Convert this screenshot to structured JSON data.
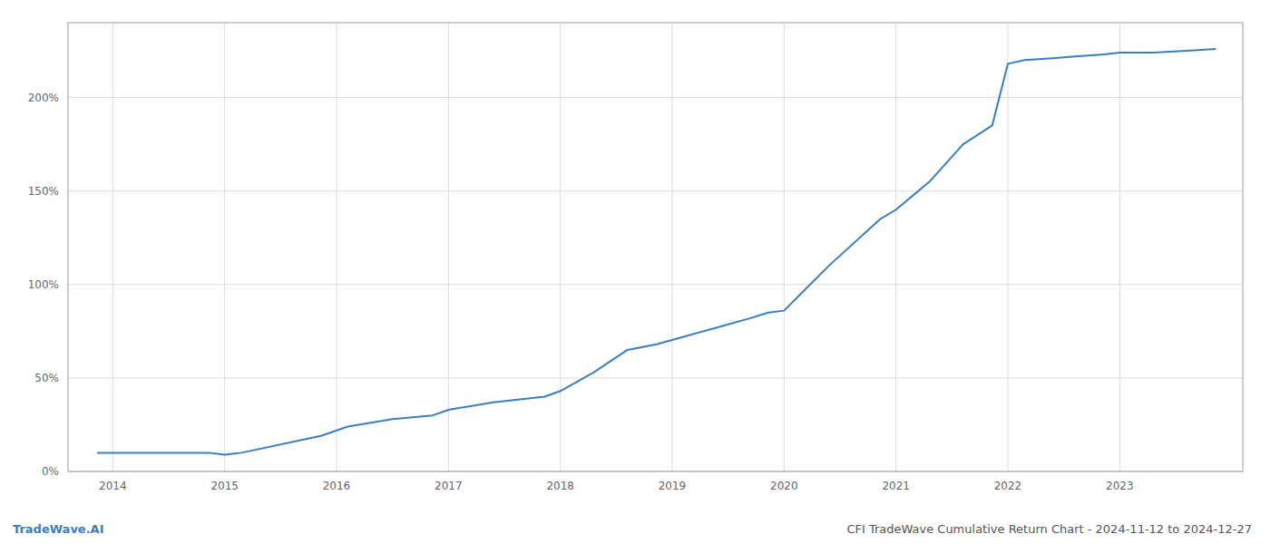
{
  "chart_data": {
    "type": "line",
    "title": "CFI TradeWave Cumulative Return Chart - 2024-11-12 to 2024-12-27",
    "annotations": [
      "TradeWave.AI"
    ],
    "color": "#3a7ebf",
    "x": [
      2013.86,
      2014.05,
      2014.4,
      2014.86,
      2015.0,
      2015.15,
      2015.86,
      2016.1,
      2016.5,
      2016.86,
      2017.0,
      2017.4,
      2017.86,
      2018.0,
      2018.3,
      2018.6,
      2018.86,
      2019.1,
      2019.4,
      2019.7,
      2019.86,
      2020.0,
      2020.15,
      2020.4,
      2020.86,
      2021.0,
      2021.3,
      2021.6,
      2021.86,
      2022.0,
      2022.15,
      2022.4,
      2022.6,
      2022.86,
      2023.0,
      2023.3,
      2023.6,
      2023.86
    ],
    "values": [
      10,
      10,
      10,
      10,
      9,
      10,
      19,
      24,
      28,
      30,
      33,
      37,
      40,
      43,
      53,
      65,
      68,
      72,
      77,
      82,
      85,
      86,
      95,
      110,
      135,
      140,
      155,
      175,
      185,
      218,
      220,
      221,
      222,
      223,
      224,
      224,
      225,
      226
    ],
    "xlim": [
      2013.6,
      2024.1
    ],
    "xticks": [
      2014,
      2015,
      2016,
      2017,
      2018,
      2019,
      2020,
      2021,
      2022,
      2023
    ],
    "ylim": [
      0,
      240
    ],
    "yticks": [
      {
        "value": 0,
        "label": "0%"
      },
      {
        "value": 50,
        "label": "50%"
      },
      {
        "value": 100,
        "label": "100%"
      },
      {
        "value": 150,
        "label": "150%"
      },
      {
        "value": 200,
        "label": "200%"
      }
    ],
    "grid": true
  }
}
